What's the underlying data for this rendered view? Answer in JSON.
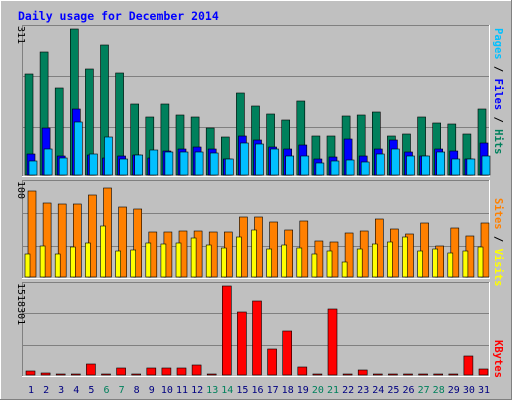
{
  "title": "Daily usage for December 2014",
  "colors": {
    "background": "#c0c0c0",
    "title": "#0000ff",
    "hits": "#00805c",
    "files": "#0000ff",
    "pages": "#00c0ff",
    "visits": "#ff8000",
    "sites": "#ffff00",
    "kbytes": "#ff0000",
    "weekend_day": "#00805c",
    "weekday": "#000080"
  },
  "chart_data": [
    {
      "type": "bar",
      "panel": "hits-files-pages",
      "ylabel_parts": [
        "Pages",
        "Files",
        "Hits"
      ],
      "ymax_label": "311",
      "ylim": [
        0,
        311
      ],
      "categories": [
        "1",
        "2",
        "3",
        "4",
        "5",
        "6",
        "7",
        "8",
        "9",
        "10",
        "11",
        "12",
        "13",
        "14",
        "15",
        "16",
        "17",
        "18",
        "19",
        "20",
        "21",
        "22",
        "23",
        "24",
        "25",
        "26",
        "27",
        "28",
        "29",
        "30",
        "31"
      ],
      "weekend_days": [
        "6",
        "7",
        "13",
        "14",
        "20",
        "21",
        "27",
        "28"
      ],
      "series": [
        {
          "name": "Hits",
          "values": [
            216,
            262,
            186,
            311,
            226,
            276,
            218,
            151,
            124,
            151,
            128,
            123,
            100,
            82,
            174,
            147,
            130,
            118,
            158,
            83,
            83,
            125,
            128,
            134,
            83,
            88,
            124,
            111,
            108,
            88,
            141
          ]
        },
        {
          "name": "Files",
          "values": [
            45,
            100,
            40,
            140,
            42,
            36,
            40,
            42,
            36,
            52,
            55,
            60,
            55,
            34,
            83,
            74,
            60,
            56,
            63,
            34,
            38,
            76,
            41,
            55,
            74,
            48,
            40,
            55,
            51,
            34,
            69
          ]
        },
        {
          "name": "Pages",
          "values": [
            30,
            55,
            36,
            112,
            45,
            80,
            35,
            42,
            54,
            48,
            48,
            50,
            47,
            34,
            68,
            65,
            56,
            40,
            40,
            25,
            30,
            32,
            28,
            45,
            55,
            40,
            40,
            50,
            35,
            34,
            40
          ]
        }
      ]
    },
    {
      "type": "bar",
      "panel": "visits-sites",
      "ylabel_parts": [
        "Sites",
        "Visits"
      ],
      "ymax_label": "100",
      "ylim": [
        0,
        100
      ],
      "categories": [
        "1",
        "2",
        "3",
        "4",
        "5",
        "6",
        "7",
        "8",
        "9",
        "10",
        "11",
        "12",
        "13",
        "14",
        "15",
        "16",
        "17",
        "18",
        "19",
        "20",
        "21",
        "22",
        "23",
        "24",
        "25",
        "26",
        "27",
        "28",
        "29",
        "30",
        "31"
      ],
      "series": [
        {
          "name": "Visits",
          "values": [
            92,
            80,
            78,
            78,
            88,
            96,
            75,
            73,
            48,
            48,
            49,
            49,
            48,
            48,
            65,
            64,
            59,
            50,
            60,
            39,
            38,
            47,
            49,
            62,
            52,
            46,
            58,
            33,
            53,
            44,
            58
          ]
        },
        {
          "name": "Sites",
          "values": [
            25,
            33,
            25,
            32,
            37,
            55,
            28,
            29,
            37,
            36,
            37,
            42,
            34,
            31,
            43,
            50,
            30,
            34,
            31,
            25,
            28,
            16,
            30,
            36,
            38,
            43,
            28,
            30,
            26,
            28,
            32
          ]
        }
      ]
    },
    {
      "type": "bar",
      "panel": "kbytes",
      "ylabel_parts": [
        "KBytes"
      ],
      "ymax_label": "1518301",
      "ylim": [
        0,
        1518301
      ],
      "categories": [
        "1",
        "2",
        "3",
        "4",
        "5",
        "6",
        "7",
        "8",
        "9",
        "10",
        "11",
        "12",
        "13",
        "14",
        "15",
        "16",
        "17",
        "18",
        "19",
        "20",
        "21",
        "22",
        "23",
        "24",
        "25",
        "26",
        "27",
        "28",
        "29",
        "30",
        "31"
      ],
      "series": [
        {
          "name": "KBytes",
          "values": [
            60000,
            40000,
            20000,
            20000,
            180000,
            20000,
            120000,
            20000,
            120000,
            120000,
            120000,
            170000,
            20000,
            1518301,
            1070000,
            1270000,
            450000,
            750000,
            140000,
            20000,
            1130000,
            20000,
            80000,
            20000,
            20000,
            20000,
            20000,
            20000,
            20000,
            330000,
            100000
          ]
        }
      ]
    }
  ]
}
